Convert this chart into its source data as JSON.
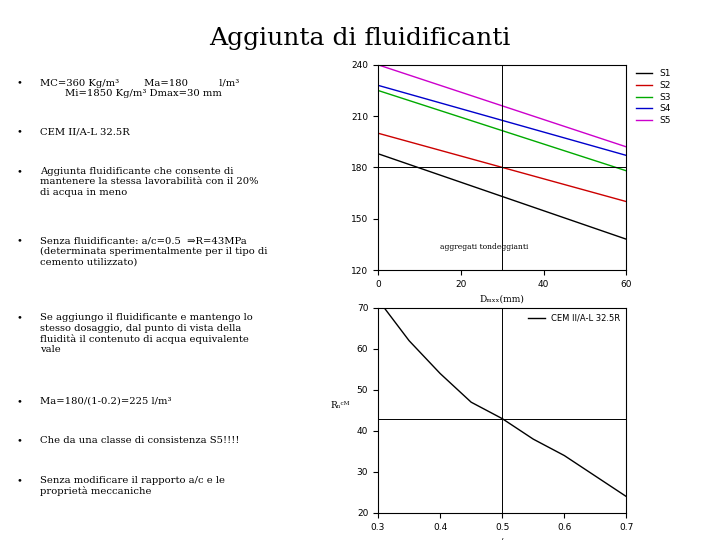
{
  "title": "Aggiunta di fluidificanti",
  "title_fontsize": 18,
  "background_color": "#ffffff",
  "bullet_points": [
    "MC=360 Kg/m³        Ma=180          l/m³\n        Mi=1850 Kg/m³ Dmax=30 mm",
    "CEM II/A-L 32.5R",
    "Aggiunta fluidificante che consente di\nmantenere la stessa lavorabilità con il 20%\ndi acqua in meno",
    "Senza fluidificante: a/c=0.5  ⇒R=43MPa\n(determinata sperimentalmente per il tipo di\ncemento utilizzato)",
    "Se aggiungo il fluidificante e mantengo lo\nstesso dosaggio, dal punto di vista della\nfluidità il contenuto di acqua equivalente\nvale",
    "Ma=180/(1-0.2)=225 l/m³",
    "Che da una classe di consistenza S5!!!!",
    "Senza modificare il rapporto a/c e le\nproprietà meccaniche"
  ],
  "chart1": {
    "xlabel": "Dₘₓₓ(mm)",
    "xlim": [
      0,
      60
    ],
    "ylim": [
      120,
      240
    ],
    "yticks": [
      120,
      150,
      180,
      210,
      240
    ],
    "xticks": [
      0,
      20,
      40,
      60
    ],
    "annotation": "aggregati tondeggianti",
    "vline_x": 30,
    "hline_y": 180,
    "series": {
      "S1": {
        "color": "#000000",
        "x": [
          0,
          60
        ],
        "y": [
          188,
          138
        ]
      },
      "S2": {
        "color": "#cc0000",
        "x": [
          0,
          60
        ],
        "y": [
          200,
          160
        ]
      },
      "S3": {
        "color": "#00aa00",
        "x": [
          0,
          60
        ],
        "y": [
          225,
          178
        ]
      },
      "S4": {
        "color": "#0000cc",
        "x": [
          0,
          60
        ],
        "y": [
          228,
          187
        ]
      },
      "S5": {
        "color": "#cc00cc",
        "x": [
          0,
          60
        ],
        "y": [
          240,
          192
        ]
      }
    }
  },
  "chart2": {
    "xlabel": "a/c",
    "ylabel": "Rₙᶜᴹ",
    "xlim": [
      0.3,
      0.7
    ],
    "ylim": [
      20,
      70
    ],
    "yticks": [
      20,
      30,
      40,
      50,
      60,
      70
    ],
    "xticks": [
      0.3,
      0.4,
      0.5,
      0.6,
      0.7
    ],
    "legend_label": "CEM II/A-L 32.5R",
    "vline_x": 0.5,
    "hline_y": 43,
    "curve_x": [
      0.3,
      0.35,
      0.4,
      0.45,
      0.5,
      0.55,
      0.6,
      0.65,
      0.7
    ],
    "curve_y": [
      72,
      62,
      54,
      47,
      43,
      38,
      34,
      29,
      24
    ]
  }
}
